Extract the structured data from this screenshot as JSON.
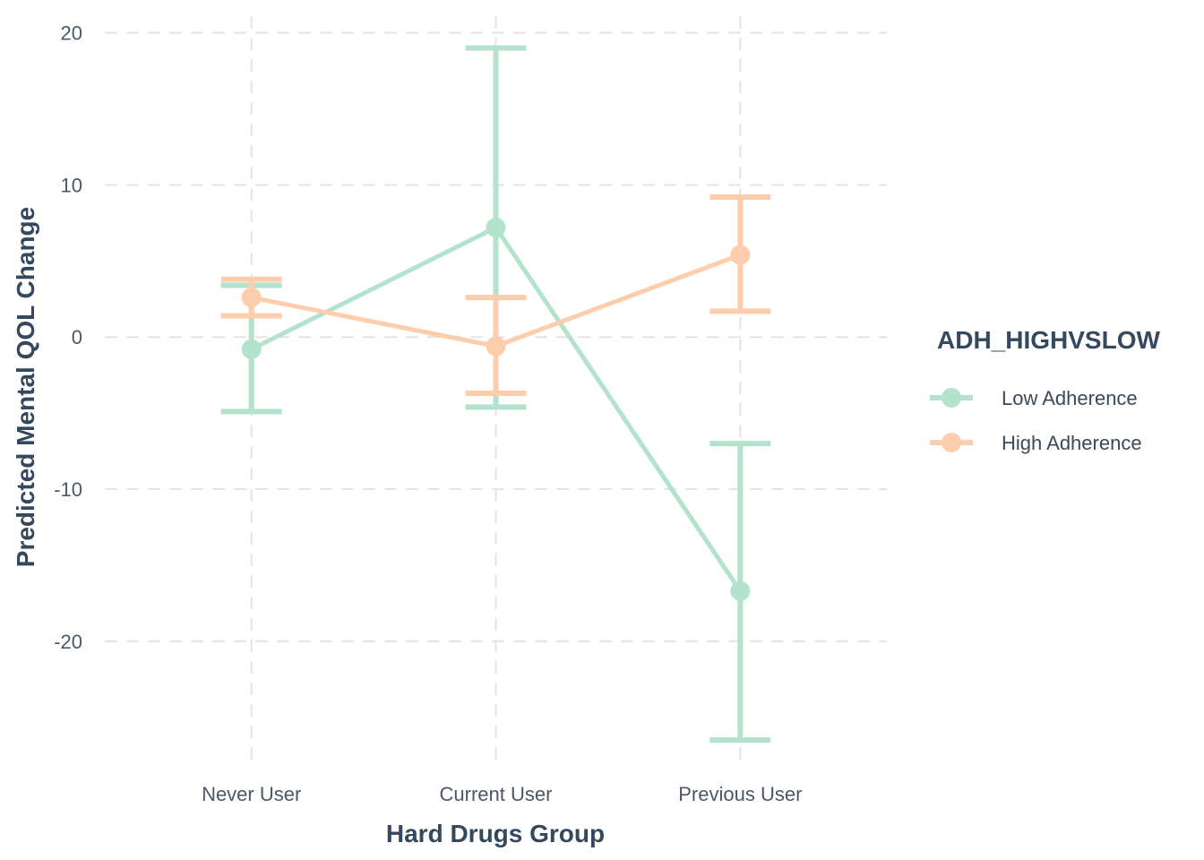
{
  "chart_data": {
    "type": "line",
    "xlabel": "Hard Drugs Group",
    "ylabel": "Predicted Mental QOL Change",
    "categories": [
      "Never User",
      "Current User",
      "Previous User"
    ],
    "yticks": [
      20,
      10,
      0,
      -10,
      -20
    ],
    "ytick_labels": [
      "20",
      "10",
      "0",
      "-10",
      "-20"
    ],
    "ylim": [
      -28.2,
      21.1
    ],
    "grid": true,
    "legend": {
      "title": "ADH_HIGHVSLOW",
      "position": "right"
    },
    "series": [
      {
        "name": "Low Adherence",
        "color": "#b3e2cd",
        "values": [
          -0.8,
          7.2,
          -16.7
        ],
        "lower": [
          -4.9,
          -4.6,
          -26.5
        ],
        "upper": [
          3.4,
          19.0,
          -7.0
        ]
      },
      {
        "name": "High Adherence",
        "color": "#fdcdac",
        "values": [
          2.6,
          -0.6,
          5.4
        ],
        "lower": [
          1.4,
          -3.7,
          1.7
        ],
        "upper": [
          3.8,
          2.6,
          9.2
        ]
      }
    ]
  }
}
